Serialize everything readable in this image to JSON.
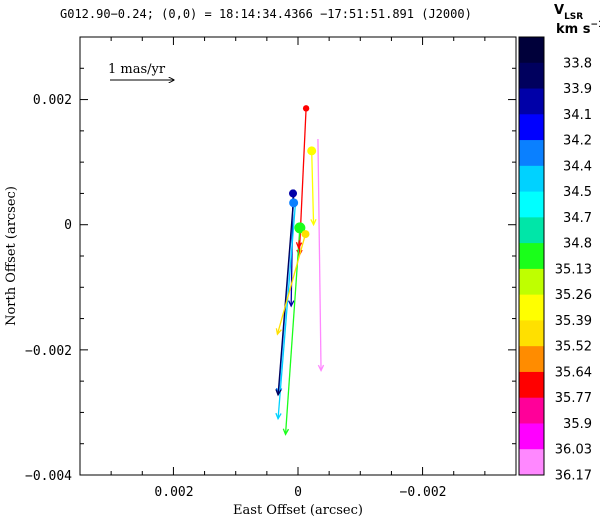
{
  "chart_data": {
    "type": "scatter",
    "title": "G012.90−0.24;  (0,0) = 18:14:34.4366     −17:51:51.891 (J2000)",
    "xlabel": "East Offset (arcsec)",
    "ylabel": "North Offset (arcsec)",
    "xlim": [
      0.0035,
      -0.0035
    ],
    "ylim": [
      -0.004,
      0.003
    ],
    "x_ticks": [
      0.002,
      0,
      -0.002
    ],
    "x_tick_labels": [
      "0.002",
      "0",
      "−0.002"
    ],
    "y_ticks": [
      0.002,
      0,
      -0.002,
      -0.004
    ],
    "y_tick_labels": [
      "0.002",
      "0",
      "−0.002",
      "−0.004"
    ],
    "scale_bar_label": "1 mas/yr",
    "colorbar": {
      "title_main": "V",
      "title_sub": "LSR",
      "title_unit": "km s",
      "title_exp": "−1",
      "labels": [
        "33.8",
        "33.9",
        "34.1",
        "34.2",
        "34.4",
        "34.5",
        "34.7",
        "34.8",
        "35.13",
        "35.26",
        "35.39",
        "35.52",
        "35.64",
        "35.77",
        "35.9",
        "36.03",
        "36.17"
      ],
      "colors": [
        "#00003a",
        "#00005e",
        "#0000a8",
        "#0000ff",
        "#0a80ff",
        "#00d2ff",
        "#00ffff",
        "#00e6a8",
        "#1aff1a",
        "#bfff00",
        "#ffff00",
        "#ffe000",
        "#ff8c00",
        "#ff0000",
        "#ff0099",
        "#ff00ff",
        "#ff88ff"
      ]
    },
    "points": [
      {
        "x": -0.00013,
        "y": 0.00186,
        "color": "#ff0000",
        "size": 3.2,
        "vx": 0.00011,
        "vy": -0.00235
      },
      {
        "x": -0.00022,
        "y": 0.00118,
        "color": "#ffff00",
        "size": 4.5,
        "vx": -3e-05,
        "vy": -0.00118
      },
      {
        "x": -0.00032,
        "y": 0.00137,
        "color": "#ff88ff",
        "size": 0,
        "vx": -5e-05,
        "vy": -0.0037
      },
      {
        "x": 8e-05,
        "y": 0.0005,
        "color": "#0000a8",
        "size": 4.0,
        "vx": 3e-05,
        "vy": -0.0018
      },
      {
        "x": 7e-05,
        "y": 0.00035,
        "color": "#0a80ff",
        "size": 4.5,
        "vx": 0.00024,
        "vy": -0.00305
      },
      {
        "x": 4e-05,
        "y": 0.00035,
        "color": "#00d2ff",
        "size": 0,
        "vx": 0.00028,
        "vy": -0.00345
      },
      {
        "x": 6e-05,
        "y": 0.00056,
        "color": "#00005e",
        "size": 0,
        "vx": 0.00026,
        "vy": -0.00328
      },
      {
        "x": -3e-05,
        "y": -5e-05,
        "color": "#1aff1a",
        "size": 5.5,
        "vx": 0.00023,
        "vy": -0.0033
      },
      {
        "x": -0.00012,
        "y": -0.00015,
        "color": "#ffe000",
        "size": 4.0,
        "vx": 0.00045,
        "vy": -0.0016
      },
      {
        "x": -2e-05,
        "y": -0.00025,
        "color": "#ff0000",
        "size": 0,
        "vx": 1e-05,
        "vy": -0.00012
      }
    ]
  }
}
